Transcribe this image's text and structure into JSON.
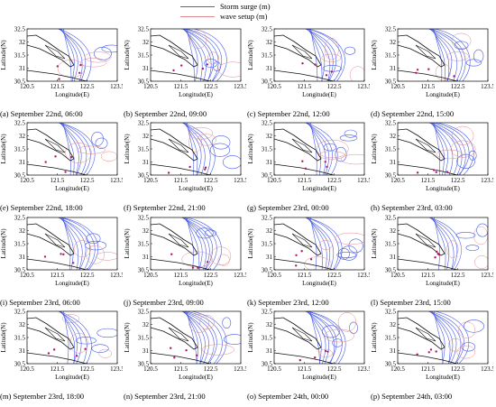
{
  "legend": {
    "storm_surge": "Storm surge (m)",
    "wave_setup": "wave setup (m)",
    "storm_color": "#4a5ce6",
    "wave_color": "#e08b8b"
  },
  "axes": {
    "ylabel": "Latitude(N)",
    "xlabel": "Longitude(E)",
    "y_ticks": [
      "32.5",
      "32",
      "31.5",
      "31",
      "30.5"
    ],
    "x_ticks": [
      "120.5",
      "121.5",
      "122.5",
      "123.5"
    ]
  },
  "panels": [
    {
      "caption": "(a) September 22nd, 06:00"
    },
    {
      "caption": "(b) September 22nd, 09:00"
    },
    {
      "caption": "(c) September 22nd, 12:00"
    },
    {
      "caption": "(d) September 22nd, 15:00"
    },
    {
      "caption": "(e) September 22nd, 18:00"
    },
    {
      "caption": "(f) September 22nd, 21:00"
    },
    {
      "caption": "(g) September 23rd, 00:00"
    },
    {
      "caption": "(h) September 23rd, 03:00"
    },
    {
      "caption": "(i) September 23rd, 06:00"
    },
    {
      "caption": "(j) September 23rd, 09:00"
    },
    {
      "caption": "(k) September 23rd, 12:00"
    },
    {
      "caption": "(l) September 23rd, 15:00"
    },
    {
      "caption": "(m) September 23rd, 18:00"
    },
    {
      "caption": "(n) September 23rd, 21:00"
    },
    {
      "caption": "(o) September 24th, 00:00"
    },
    {
      "caption": "(p) September 24th, 03:00"
    }
  ]
}
